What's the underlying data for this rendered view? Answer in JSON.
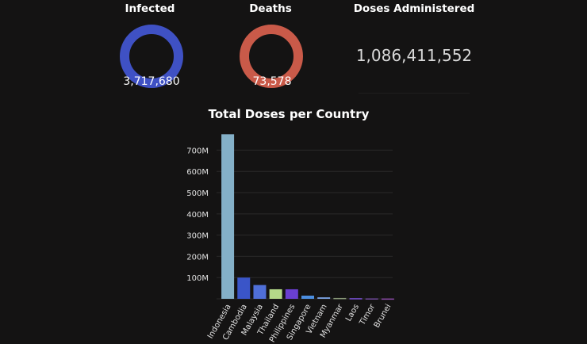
{
  "cards": {
    "infected": {
      "title": "Infected",
      "value": "3,717,680",
      "ring_color": "#3f51c4"
    },
    "deaths": {
      "title": "Deaths",
      "value": "73,578",
      "ring_color": "#c95a49"
    },
    "doses": {
      "title": "Doses Administered",
      "value": "1,086,411,552"
    }
  },
  "chart_data": {
    "type": "bar",
    "title": "Total Doses per Country",
    "xlabel": "",
    "ylabel": "",
    "categories": [
      "Indonesia",
      "Cambodia",
      "Malaysia",
      "Thailand",
      "Philippines",
      "Singapore",
      "Vietnam",
      "Myanmar",
      "Laos",
      "Timor",
      "Brunei"
    ],
    "values": [
      775000000,
      100000000,
      65000000,
      45000000,
      45000000,
      15000000,
      7000000,
      4000000,
      3000000,
      2000000,
      1500000
    ],
    "colors": [
      "#84b0c8",
      "#3a55c8",
      "#4f6fd8",
      "#b4d989",
      "#6a3fd0",
      "#4b8ee0",
      "#7aa0e0",
      "#8a9a7a",
      "#7a52d8",
      "#6f4a9a",
      "#8a4aa8"
    ],
    "yticks": [
      100000000,
      200000000,
      300000000,
      400000000,
      500000000,
      600000000,
      700000000
    ],
    "ytick_labels": [
      "100M",
      "200M",
      "300M",
      "400M",
      "500M",
      "600M",
      "700M"
    ],
    "ylim": [
      0,
      780000000
    ],
    "grid": true
  }
}
